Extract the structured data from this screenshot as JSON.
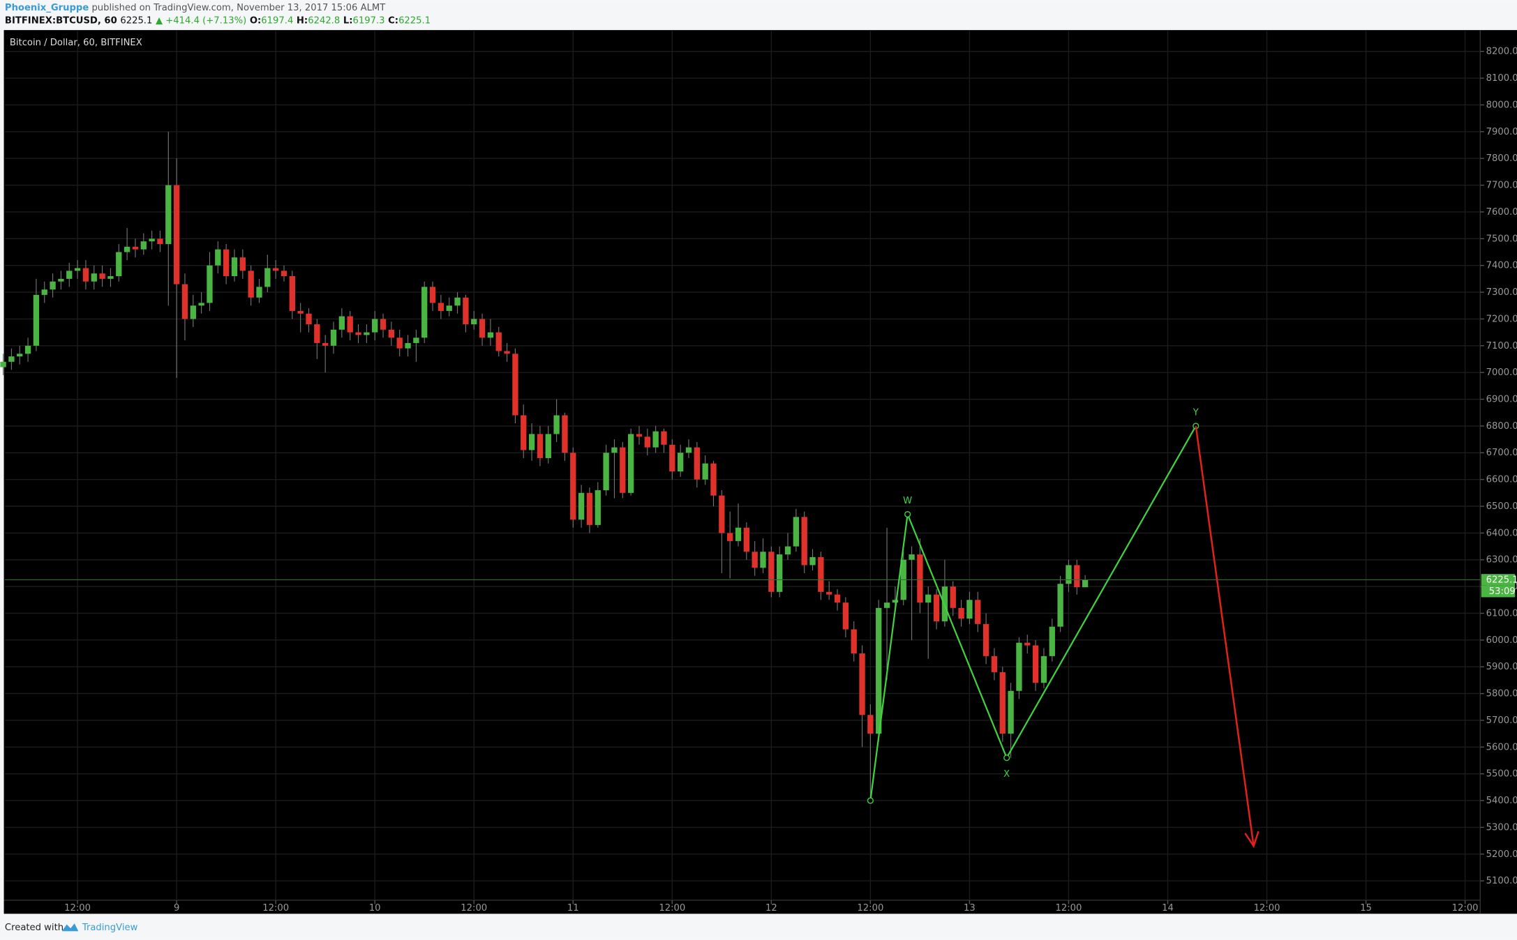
{
  "header": {
    "author": "Phoenix_Gruppe",
    "published": "published on TradingView.com, November 13, 2017 15:06 ALMT",
    "symbol": "BITFINEX:BTCUSD, 60",
    "change": "▲ +414.4 (+7.13%)",
    "ohlc_labels": [
      "O:",
      "H:",
      "L:",
      "C:"
    ]
  },
  "chart_data": {
    "type": "candlestick",
    "title": "Bitcoin / Dollar, 60, BITFINEX",
    "x": [
      3,
      4,
      5,
      6,
      7,
      8,
      9,
      10,
      11,
      12,
      13,
      14,
      15,
      16,
      17,
      18,
      19,
      20,
      21,
      22,
      23,
      24,
      25,
      26,
      27,
      28,
      29,
      30,
      31,
      32,
      33,
      34,
      35,
      36,
      37,
      38,
      39,
      40,
      41,
      42,
      43,
      44,
      45,
      46,
      47,
      48,
      49,
      50,
      51,
      52,
      53,
      54,
      55,
      56,
      57,
      58,
      59,
      60,
      61,
      62,
      63,
      64,
      65,
      66,
      67,
      68,
      69,
      70,
      71,
      72,
      73,
      74,
      75,
      76,
      77,
      78,
      79,
      80,
      81,
      82,
      83,
      84,
      85,
      86,
      87,
      88,
      89,
      90,
      91,
      92,
      93,
      94,
      95,
      96,
      97,
      98,
      99,
      100,
      101,
      102,
      103,
      104,
      105,
      106,
      107,
      108,
      109,
      110,
      111,
      112,
      113,
      114,
      115,
      116,
      117,
      118,
      119,
      120,
      121,
      122,
      123,
      124,
      125,
      126,
      127,
      128,
      129,
      130,
      131,
      132,
      133,
      134
    ],
    "open": [
      7020,
      7040,
      7060,
      7070,
      7100,
      7290,
      7310,
      7340,
      7350,
      7380,
      7390,
      7340,
      7370,
      7350,
      7360,
      7450,
      7470,
      7460,
      7490,
      7500,
      7480,
      7700,
      7330,
      7200,
      7250,
      7260,
      7400,
      7460,
      7360,
      7430,
      7380,
      7280,
      7320,
      7390,
      7380,
      7360,
      7230,
      7220,
      7180,
      7110,
      7100,
      7160,
      7210,
      7150,
      7140,
      7150,
      7200,
      7160,
      7130,
      7090,
      7110,
      7130,
      7320,
      7260,
      7230,
      7250,
      7280,
      7180,
      7200,
      7130,
      7150,
      7080,
      7070,
      6840,
      6710,
      6770,
      6680,
      6770,
      6840,
      6700,
      6450,
      6550,
      6430,
      6560,
      6700,
      6720,
      6550,
      6770,
      6760,
      6720,
      6780,
      6730,
      6630,
      6700,
      6720,
      6600,
      6660,
      6540,
      6400,
      6370,
      6420,
      6330,
      6270,
      6330,
      6180,
      6320,
      6350,
      6460,
      6280,
      6310,
      6180,
      6170,
      6140,
      6040,
      5950,
      5720,
      5650,
      6120,
      6140,
      6150,
      6300,
      6320,
      6140,
      6170,
      6070,
      6200,
      6120,
      6080,
      6150,
      6060,
      5940,
      5880,
      5650,
      5810,
      5990,
      5980,
      5840,
      5940,
      6050,
      6210,
      6280,
      6197.4
    ],
    "high": [
      7070,
      7090,
      7100,
      7130,
      7350,
      7340,
      7370,
      7380,
      7410,
      7420,
      7420,
      7400,
      7400,
      7390,
      7480,
      7540,
      7500,
      7520,
      7530,
      7530,
      7900,
      7800,
      7370,
      7290,
      7300,
      7450,
      7490,
      7480,
      7460,
      7460,
      7400,
      7350,
      7440,
      7420,
      7400,
      7380,
      7260,
      7240,
      7200,
      7140,
      7190,
      7240,
      7230,
      7180,
      7180,
      7230,
      7220,
      7190,
      7160,
      7140,
      7160,
      7340,
      7340,
      7290,
      7280,
      7300,
      7290,
      7230,
      7220,
      7200,
      7170,
      7110,
      7090,
      6880,
      6810,
      6800,
      6800,
      6900,
      6850,
      6720,
      6580,
      6570,
      6590,
      6730,
      6750,
      6740,
      6790,
      6800,
      6790,
      6800,
      6790,
      6750,
      6730,
      6750,
      6740,
      6690,
      6670,
      6560,
      6480,
      6510,
      6440,
      6370,
      6380,
      6350,
      6350,
      6400,
      6490,
      6480,
      6340,
      6330,
      6220,
      6190,
      6160,
      6070,
      5980,
      5760,
      6150,
      6420,
      6200,
      6330,
      6350,
      6380,
      6200,
      6190,
      6300,
      6220,
      6150,
      6180,
      6180,
      6100,
      5970,
      5900,
      5840,
      6010,
      6020,
      6000,
      5970,
      6080,
      6240,
      6300,
      6300,
      6242.8
    ],
    "low": [
      6990,
      7010,
      7030,
      7040,
      7080,
      7260,
      7280,
      7310,
      7320,
      7350,
      7310,
      7310,
      7320,
      7320,
      7340,
      7420,
      7430,
      7440,
      7460,
      7450,
      7250,
      6980,
      7120,
      7170,
      7220,
      7230,
      7370,
      7330,
      7340,
      7350,
      7250,
      7260,
      7300,
      7350,
      7340,
      7200,
      7150,
      7150,
      7050,
      7000,
      7070,
      7130,
      7120,
      7110,
      7110,
      7120,
      7130,
      7100,
      7060,
      7060,
      7040,
      7110,
      7230,
      7200,
      7210,
      7220,
      7150,
      7160,
      7100,
      7100,
      7060,
      7040,
      6810,
      6680,
      6670,
      6650,
      6660,
      6740,
      6670,
      6420,
      6420,
      6400,
      6420,
      6540,
      6530,
      6530,
      6540,
      6730,
      6690,
      6700,
      6700,
      6600,
      6610,
      6680,
      6570,
      6580,
      6500,
      6250,
      6230,
      6350,
      6300,
      6240,
      6250,
      6160,
      6160,
      6300,
      6330,
      6250,
      6260,
      6150,
      6150,
      6110,
      6010,
      5920,
      5600,
      5400,
      5620,
      5850,
      6120,
      6130,
      6000,
      6100,
      5930,
      6040,
      6050,
      6090,
      6050,
      6060,
      6030,
      5910,
      5850,
      5620,
      5560,
      5780,
      5950,
      5810,
      5820,
      5920,
      6030,
      6180,
      6170,
      6197.3
    ],
    "close": [
      7040,
      7060,
      7070,
      7100,
      7290,
      7310,
      7340,
      7350,
      7380,
      7390,
      7340,
      7370,
      7350,
      7360,
      7450,
      7470,
      7460,
      7490,
      7500,
      7480,
      7700,
      7330,
      7200,
      7250,
      7260,
      7400,
      7460,
      7360,
      7430,
      7380,
      7280,
      7320,
      7390,
      7380,
      7360,
      7230,
      7220,
      7180,
      7110,
      7100,
      7160,
      7210,
      7150,
      7140,
      7150,
      7200,
      7160,
      7130,
      7090,
      7110,
      7130,
      7320,
      7260,
      7230,
      7250,
      7280,
      7180,
      7200,
      7130,
      7150,
      7080,
      7070,
      6840,
      6710,
      6770,
      6680,
      6770,
      6840,
      6700,
      6450,
      6550,
      6430,
      6560,
      6700,
      6720,
      6550,
      6770,
      6760,
      6720,
      6780,
      6730,
      6630,
      6700,
      6720,
      6600,
      6660,
      6540,
      6400,
      6370,
      6420,
      6330,
      6270,
      6330,
      6180,
      6320,
      6350,
      6460,
      6280,
      6310,
      6180,
      6170,
      6140,
      6040,
      5950,
      5720,
      5650,
      6120,
      6140,
      6150,
      6300,
      6320,
      6140,
      6170,
      6070,
      6200,
      6120,
      6080,
      6150,
      6060,
      5940,
      5880,
      5650,
      5810,
      5990,
      5980,
      5840,
      5940,
      6050,
      6210,
      6280,
      6197.4,
      6225.1
    ],
    "up_color": "#4bb543",
    "down_color": "#e0312b",
    "xlim": [
      3.2,
      181.6
    ],
    "xticks": [
      {
        "value": 12,
        "label": "12:00"
      },
      {
        "value": 24,
        "label": "9"
      },
      {
        "value": 36,
        "label": "12:00"
      },
      {
        "value": 48,
        "label": "10"
      },
      {
        "value": 60,
        "label": "12:00"
      },
      {
        "value": 72,
        "label": "11"
      },
      {
        "value": 84,
        "label": "12:00"
      },
      {
        "value": 96,
        "label": "12"
      },
      {
        "value": 108,
        "label": "12:00"
      },
      {
        "value": 120,
        "label": "13"
      },
      {
        "value": 132,
        "label": "12:00"
      },
      {
        "value": 144,
        "label": "14"
      },
      {
        "value": 156,
        "label": "12:00"
      },
      {
        "value": 168,
        "label": "15"
      },
      {
        "value": 180,
        "label": "12:00"
      }
    ],
    "ylim": [
      4977,
      8276
    ],
    "yticks": [
      {
        "value": 5100,
        "label": "5100.0"
      },
      {
        "value": 5200,
        "label": "5200.0"
      },
      {
        "value": 5300,
        "label": "5300.0"
      },
      {
        "value": 5400,
        "label": "5400.0"
      },
      {
        "value": 5500,
        "label": "5500.0"
      },
      {
        "value": 5600,
        "label": "5600.0"
      },
      {
        "value": 5700,
        "label": "5700.0"
      },
      {
        "value": 5800,
        "label": "5800.0"
      },
      {
        "value": 5900,
        "label": "5900.0"
      },
      {
        "value": 6000,
        "label": "6000.0"
      },
      {
        "value": 6100,
        "label": "6100.0"
      },
      {
        "value": 6200,
        "label": "6200.0"
      },
      {
        "value": 6300,
        "label": "6300.0"
      },
      {
        "value": 6400,
        "label": "6400.0"
      },
      {
        "value": 6500,
        "label": "6500.0"
      },
      {
        "value": 6600,
        "label": "6600.0"
      },
      {
        "value": 6700,
        "label": "6700.0"
      },
      {
        "value": 6800,
        "label": "6800.0"
      },
      {
        "value": 6900,
        "label": "6900.0"
      },
      {
        "value": 7000,
        "label": "7000.0"
      },
      {
        "value": 7100,
        "label": "7100.0"
      },
      {
        "value": 7200,
        "label": "7200.0"
      },
      {
        "value": 7300,
        "label": "7300.0"
      },
      {
        "value": 7400,
        "label": "7400.0"
      },
      {
        "value": 7500,
        "label": "7500.0"
      },
      {
        "value": 7600,
        "label": "7600.0"
      },
      {
        "value": 7700,
        "label": "7700.0"
      },
      {
        "value": 7800,
        "label": "7800.0"
      },
      {
        "value": 7900,
        "label": "7900.0"
      },
      {
        "value": 8000,
        "label": "8000.0"
      },
      {
        "value": 8100,
        "label": "8100.0"
      },
      {
        "value": 8200,
        "label": "8200.0"
      }
    ],
    "grid": true,
    "countdown": "53:09",
    "pattern": {
      "color": "#3fd43f",
      "x": [
        108,
        112.5,
        124.5,
        147.4
      ],
      "y": [
        5400,
        6470,
        5560,
        6800
      ],
      "labels": [
        null,
        "W",
        "X",
        "Y"
      ]
    },
    "projection": {
      "color": "#e3211b",
      "x": [
        147.4,
        154.4
      ],
      "y": [
        6800,
        5230
      ]
    }
  },
  "footer": {
    "created": "Created with",
    "brand": "TradingView"
  }
}
